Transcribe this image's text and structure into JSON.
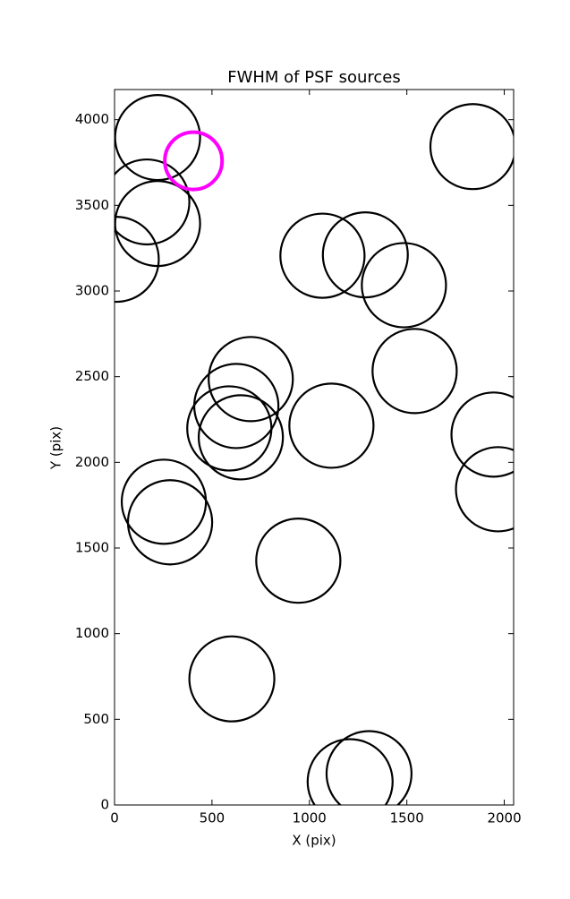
{
  "chart_data": {
    "type": "scatter",
    "title": "FWHM of PSF sources",
    "x_label": "X (pix)",
    "y_label": "Y (pix)",
    "xlim": [
      0,
      2048
    ],
    "ylim": [
      0,
      4176
    ],
    "xticks": [
      0,
      500,
      1000,
      1500,
      2000
    ],
    "yticks": [
      0,
      500,
      1000,
      1500,
      2000,
      2500,
      3000,
      3500,
      4000
    ],
    "grid": false,
    "series": [
      {
        "color": "#000000",
        "x": [
          221,
          166,
          221,
          9,
          1839,
          1067,
          1287,
          1485,
          1540,
          699,
          625,
          589,
          648,
          1113,
          1945,
          1968,
          253,
          285,
          943,
          602,
          1306,
          1209
        ],
        "values": [
          3896,
          3520,
          3394,
          3185,
          3843,
          3206,
          3211,
          3034,
          2533,
          2486,
          2329,
          2198,
          2146,
          2214,
          2162,
          1843,
          1770,
          1650,
          1426,
          736,
          183,
          136
        ],
        "sizes": [
          218,
          218,
          218,
          218,
          218,
          216,
          218,
          216,
          216,
          216,
          216,
          216,
          216,
          216,
          216,
          216,
          216,
          216,
          216,
          218,
          218,
          218
        ]
      },
      {
        "color": "#ff00ff",
        "x": [
          405
        ],
        "values": [
          3760
        ],
        "sizes": [
          147
        ]
      }
    ]
  }
}
